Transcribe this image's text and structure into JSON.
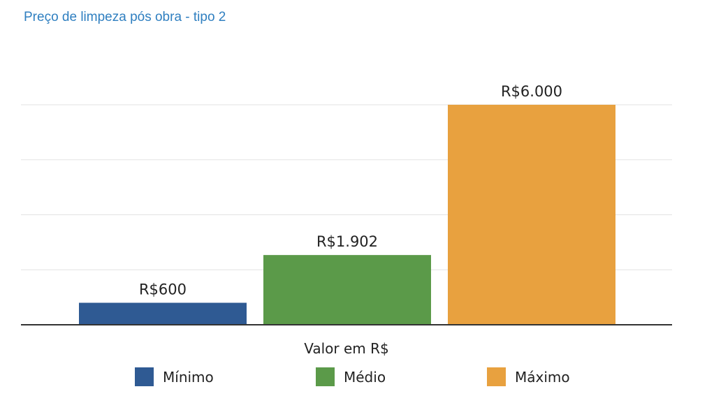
{
  "chart_data": {
    "type": "bar",
    "title": "Preço de limpeza pós obra - tipo 2",
    "xlabel": "Valor em R$",
    "ylabel": "",
    "ylim": [
      0,
      6000
    ],
    "grid": true,
    "legend_position": "bottom",
    "series": [
      {
        "name": "Mínimo",
        "value": 600,
        "label": "R$600",
        "color": "#2f5a93"
      },
      {
        "name": "Médio",
        "value": 1902,
        "label": "R$1.902",
        "color": "#5b9a49"
      },
      {
        "name": "Máximo",
        "value": 6000,
        "label": "R$6.000",
        "color": "#e8a13f"
      }
    ]
  }
}
